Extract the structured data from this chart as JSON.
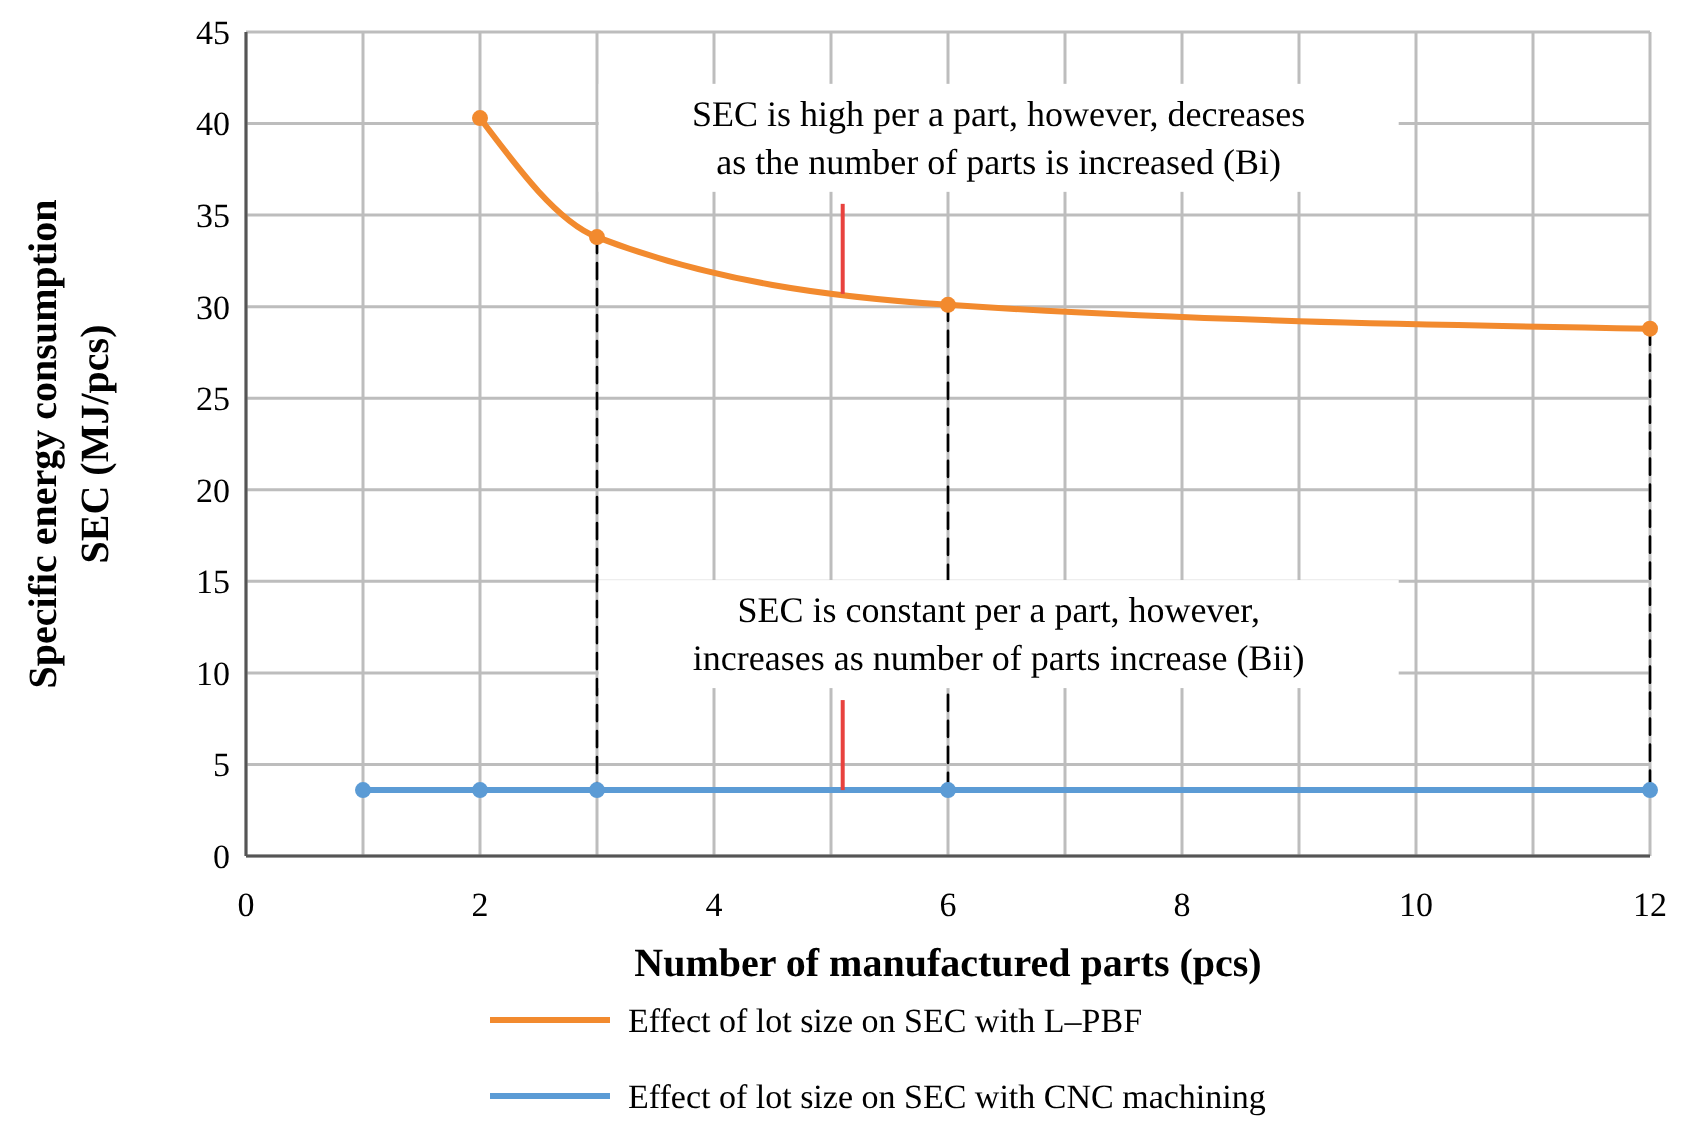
{
  "chart_data": {
    "type": "line",
    "xlabel": "Number of manufactured parts (pcs)",
    "ylabel": "Specific energy consumption\nSEC (MJ/pcs)",
    "xlim": [
      0,
      12
    ],
    "xticks": [
      0,
      {
        "value": 1,
        "label": null
      },
      2,
      {
        "value": 3,
        "label": null
      },
      4,
      {
        "value": 5,
        "label": null
      },
      6,
      {
        "value": 7,
        "label": null
      },
      8,
      {
        "value": 9,
        "label": null
      },
      10,
      {
        "value": 11,
        "label": null
      },
      12
    ],
    "ylim": [
      0,
      45
    ],
    "yticks": [
      0,
      5,
      10,
      15,
      20,
      25,
      30,
      35,
      40,
      45
    ],
    "grid": true,
    "legend": "bottom",
    "marker": "circle",
    "line_style": "solid",
    "series": [
      {
        "name": "Effect of lot size on SEC with L–PBF",
        "color": "#f28a2e",
        "x": [
          2,
          3,
          6,
          12
        ],
        "values": [
          40.3,
          33.8,
          30.1,
          28.8
        ]
      },
      {
        "name": "Effect of lot size on SEC with CNC machining",
        "color": "#5b9bd5",
        "x": [
          1,
          2,
          3,
          6,
          12
        ],
        "values": [
          3.6,
          3.6,
          3.6,
          3.6,
          3.6
        ]
      },
      {
        "color": "#000000",
        "x": [
          3,
          3
        ],
        "values": [
          33.8,
          3.6
        ],
        "line_style": "dashed",
        "marker": "none"
      },
      {
        "color": "#000000",
        "x": [
          6,
          6
        ],
        "values": [
          30.1,
          3.6
        ],
        "line_style": "dashed",
        "marker": "none"
      },
      {
        "color": "#000000",
        "x": [
          12,
          12
        ],
        "values": [
          28.8,
          3.6
        ],
        "line_style": "dashed",
        "marker": "none"
      }
    ],
    "annotations": [
      {
        "text": "SEC is high per a part, however, decreases\nas the number of parts is increased (Bi)",
        "x": 5.1,
        "y": 30.7
      },
      {
        "text": "SEC is constant per a part, however,\nincreases as number of parts increase (Bii)",
        "x": 5.1,
        "y": 3.6
      }
    ]
  }
}
